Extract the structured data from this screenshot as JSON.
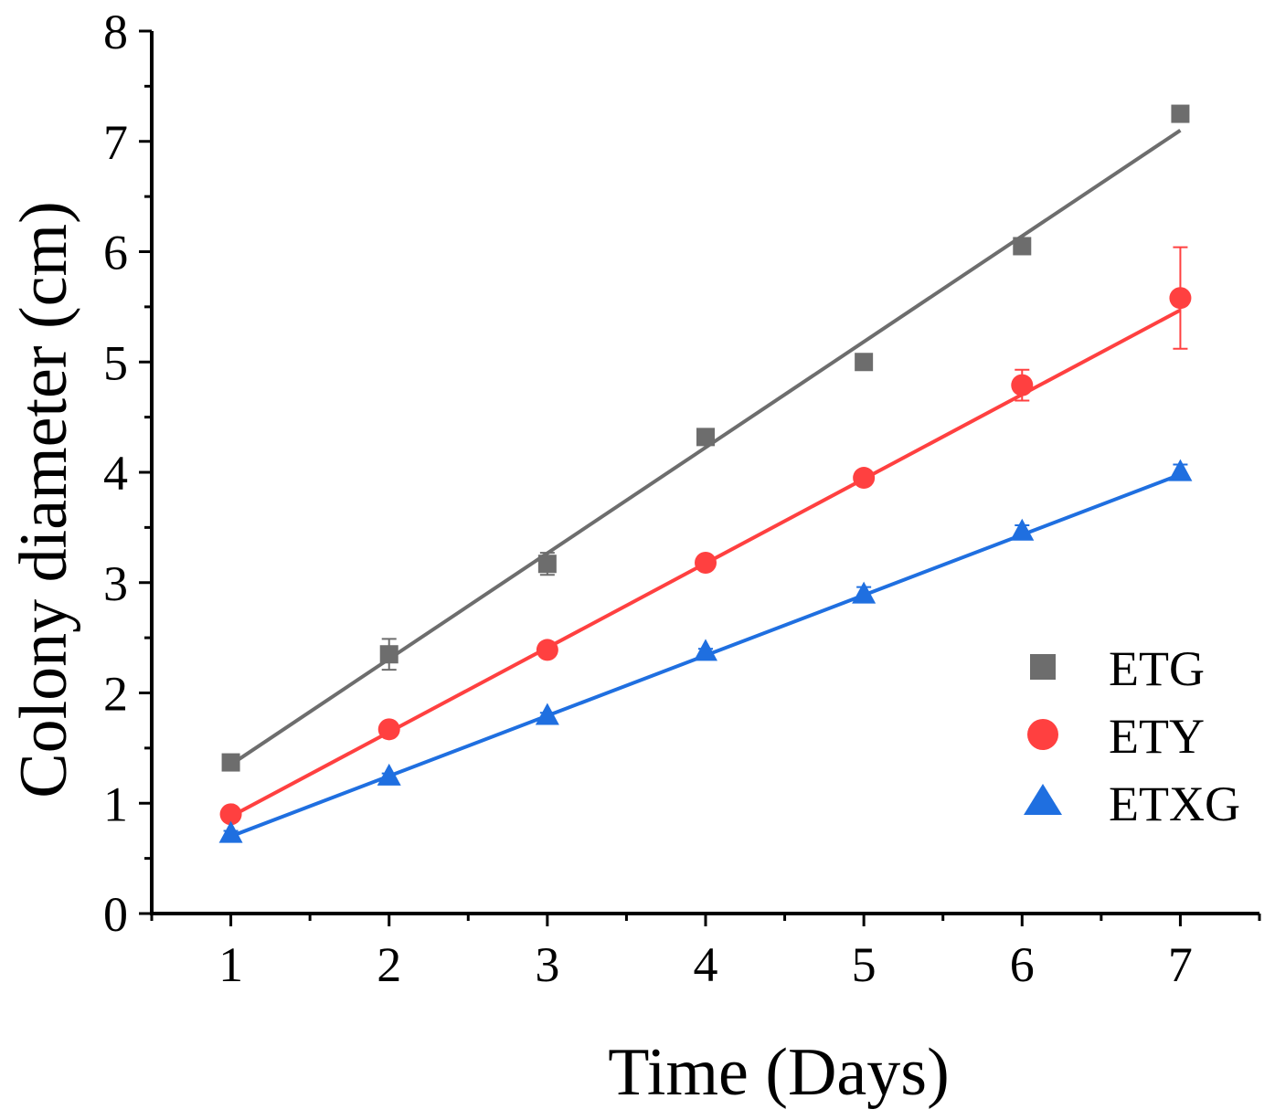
{
  "chart_data": {
    "type": "scatter",
    "title": "",
    "xlabel": "Time (Days)",
    "ylabel": "Colony diameter (cm)",
    "xlim": [
      0.5,
      7.5
    ],
    "ylim": [
      0,
      8
    ],
    "xticks": [
      1,
      2,
      3,
      4,
      5,
      6,
      7
    ],
    "yticks": [
      0,
      1,
      2,
      3,
      4,
      5,
      6,
      7,
      8
    ],
    "grid": false,
    "legend_position": "right",
    "series": [
      {
        "name": "ETG",
        "color": "#6d6d6d",
        "marker": "square",
        "x": [
          1,
          2,
          3,
          4,
          5,
          6,
          7
        ],
        "values": [
          1.37,
          2.35,
          3.17,
          4.32,
          5.0,
          6.05,
          7.25
        ],
        "errors": [
          0.03,
          0.14,
          0.1,
          0.03,
          0.03,
          0.03,
          0.03
        ],
        "fit_line": [
          [
            1,
            1.35
          ],
          [
            7,
            7.1
          ]
        ]
      },
      {
        "name": "ETY",
        "color": "#ff4040",
        "marker": "circle",
        "x": [
          1,
          2,
          3,
          4,
          5,
          6,
          7
        ],
        "values": [
          0.9,
          1.67,
          2.39,
          3.18,
          3.95,
          4.79,
          5.58
        ],
        "errors": [
          0.03,
          0.03,
          0.05,
          0.03,
          0.06,
          0.14,
          0.46
        ],
        "fit_line": [
          [
            1,
            0.88
          ],
          [
            7,
            5.47
          ]
        ]
      },
      {
        "name": "ETXG",
        "color": "#1f6fe0",
        "marker": "triangle",
        "x": [
          1,
          2,
          3,
          4,
          5,
          6,
          7
        ],
        "values": [
          0.72,
          1.24,
          1.79,
          2.37,
          2.89,
          3.46,
          4.0
        ],
        "errors": [
          0.03,
          0.03,
          0.03,
          0.03,
          0.07,
          0.06,
          0.07
        ],
        "fit_line": [
          [
            1,
            0.7
          ],
          [
            7,
            3.98
          ]
        ]
      }
    ]
  }
}
